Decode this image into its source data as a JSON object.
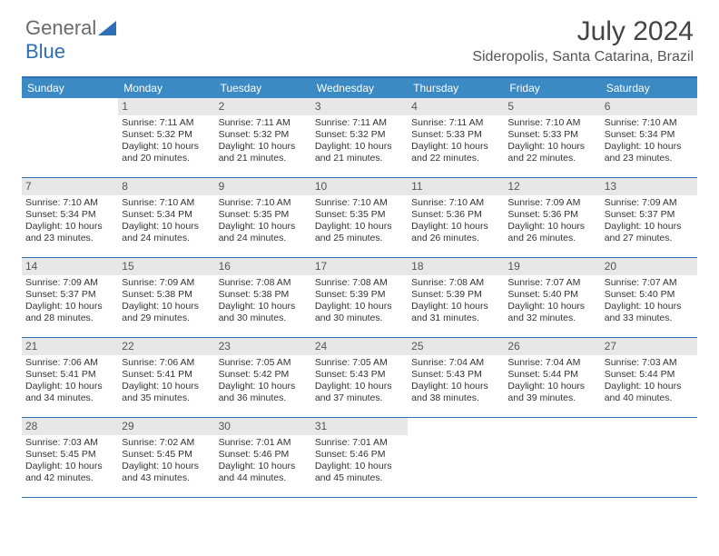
{
  "brand": {
    "part1": "General",
    "part2": "Blue"
  },
  "title": "July 2024",
  "location": "Sideropolis, Santa Catarina, Brazil",
  "colors": {
    "header_bar": "#3b8ac4",
    "border": "#2e6fb5",
    "daynum_bg": "#e7e7e7",
    "text": "#333333"
  },
  "daysOfWeek": [
    "Sunday",
    "Monday",
    "Tuesday",
    "Wednesday",
    "Thursday",
    "Friday",
    "Saturday"
  ],
  "weeks": [
    [
      {
        "n": "",
        "lines": []
      },
      {
        "n": "1",
        "lines": [
          "Sunrise: 7:11 AM",
          "Sunset: 5:32 PM",
          "Daylight: 10 hours and 20 minutes."
        ]
      },
      {
        "n": "2",
        "lines": [
          "Sunrise: 7:11 AM",
          "Sunset: 5:32 PM",
          "Daylight: 10 hours and 21 minutes."
        ]
      },
      {
        "n": "3",
        "lines": [
          "Sunrise: 7:11 AM",
          "Sunset: 5:32 PM",
          "Daylight: 10 hours and 21 minutes."
        ]
      },
      {
        "n": "4",
        "lines": [
          "Sunrise: 7:11 AM",
          "Sunset: 5:33 PM",
          "Daylight: 10 hours and 22 minutes."
        ]
      },
      {
        "n": "5",
        "lines": [
          "Sunrise: 7:10 AM",
          "Sunset: 5:33 PM",
          "Daylight: 10 hours and 22 minutes."
        ]
      },
      {
        "n": "6",
        "lines": [
          "Sunrise: 7:10 AM",
          "Sunset: 5:34 PM",
          "Daylight: 10 hours and 23 minutes."
        ]
      }
    ],
    [
      {
        "n": "7",
        "lines": [
          "Sunrise: 7:10 AM",
          "Sunset: 5:34 PM",
          "Daylight: 10 hours and 23 minutes."
        ]
      },
      {
        "n": "8",
        "lines": [
          "Sunrise: 7:10 AM",
          "Sunset: 5:34 PM",
          "Daylight: 10 hours and 24 minutes."
        ]
      },
      {
        "n": "9",
        "lines": [
          "Sunrise: 7:10 AM",
          "Sunset: 5:35 PM",
          "Daylight: 10 hours and 24 minutes."
        ]
      },
      {
        "n": "10",
        "lines": [
          "Sunrise: 7:10 AM",
          "Sunset: 5:35 PM",
          "Daylight: 10 hours and 25 minutes."
        ]
      },
      {
        "n": "11",
        "lines": [
          "Sunrise: 7:10 AM",
          "Sunset: 5:36 PM",
          "Daylight: 10 hours and 26 minutes."
        ]
      },
      {
        "n": "12",
        "lines": [
          "Sunrise: 7:09 AM",
          "Sunset: 5:36 PM",
          "Daylight: 10 hours and 26 minutes."
        ]
      },
      {
        "n": "13",
        "lines": [
          "Sunrise: 7:09 AM",
          "Sunset: 5:37 PM",
          "Daylight: 10 hours and 27 minutes."
        ]
      }
    ],
    [
      {
        "n": "14",
        "lines": [
          "Sunrise: 7:09 AM",
          "Sunset: 5:37 PM",
          "Daylight: 10 hours and 28 minutes."
        ]
      },
      {
        "n": "15",
        "lines": [
          "Sunrise: 7:09 AM",
          "Sunset: 5:38 PM",
          "Daylight: 10 hours and 29 minutes."
        ]
      },
      {
        "n": "16",
        "lines": [
          "Sunrise: 7:08 AM",
          "Sunset: 5:38 PM",
          "Daylight: 10 hours and 30 minutes."
        ]
      },
      {
        "n": "17",
        "lines": [
          "Sunrise: 7:08 AM",
          "Sunset: 5:39 PM",
          "Daylight: 10 hours and 30 minutes."
        ]
      },
      {
        "n": "18",
        "lines": [
          "Sunrise: 7:08 AM",
          "Sunset: 5:39 PM",
          "Daylight: 10 hours and 31 minutes."
        ]
      },
      {
        "n": "19",
        "lines": [
          "Sunrise: 7:07 AM",
          "Sunset: 5:40 PM",
          "Daylight: 10 hours and 32 minutes."
        ]
      },
      {
        "n": "20",
        "lines": [
          "Sunrise: 7:07 AM",
          "Sunset: 5:40 PM",
          "Daylight: 10 hours and 33 minutes."
        ]
      }
    ],
    [
      {
        "n": "21",
        "lines": [
          "Sunrise: 7:06 AM",
          "Sunset: 5:41 PM",
          "Daylight: 10 hours and 34 minutes."
        ]
      },
      {
        "n": "22",
        "lines": [
          "Sunrise: 7:06 AM",
          "Sunset: 5:41 PM",
          "Daylight: 10 hours and 35 minutes."
        ]
      },
      {
        "n": "23",
        "lines": [
          "Sunrise: 7:05 AM",
          "Sunset: 5:42 PM",
          "Daylight: 10 hours and 36 minutes."
        ]
      },
      {
        "n": "24",
        "lines": [
          "Sunrise: 7:05 AM",
          "Sunset: 5:43 PM",
          "Daylight: 10 hours and 37 minutes."
        ]
      },
      {
        "n": "25",
        "lines": [
          "Sunrise: 7:04 AM",
          "Sunset: 5:43 PM",
          "Daylight: 10 hours and 38 minutes."
        ]
      },
      {
        "n": "26",
        "lines": [
          "Sunrise: 7:04 AM",
          "Sunset: 5:44 PM",
          "Daylight: 10 hours and 39 minutes."
        ]
      },
      {
        "n": "27",
        "lines": [
          "Sunrise: 7:03 AM",
          "Sunset: 5:44 PM",
          "Daylight: 10 hours and 40 minutes."
        ]
      }
    ],
    [
      {
        "n": "28",
        "lines": [
          "Sunrise: 7:03 AM",
          "Sunset: 5:45 PM",
          "Daylight: 10 hours and 42 minutes."
        ]
      },
      {
        "n": "29",
        "lines": [
          "Sunrise: 7:02 AM",
          "Sunset: 5:45 PM",
          "Daylight: 10 hours and 43 minutes."
        ]
      },
      {
        "n": "30",
        "lines": [
          "Sunrise: 7:01 AM",
          "Sunset: 5:46 PM",
          "Daylight: 10 hours and 44 minutes."
        ]
      },
      {
        "n": "31",
        "lines": [
          "Sunrise: 7:01 AM",
          "Sunset: 5:46 PM",
          "Daylight: 10 hours and 45 minutes."
        ]
      },
      {
        "n": "",
        "lines": []
      },
      {
        "n": "",
        "lines": []
      },
      {
        "n": "",
        "lines": []
      }
    ]
  ]
}
